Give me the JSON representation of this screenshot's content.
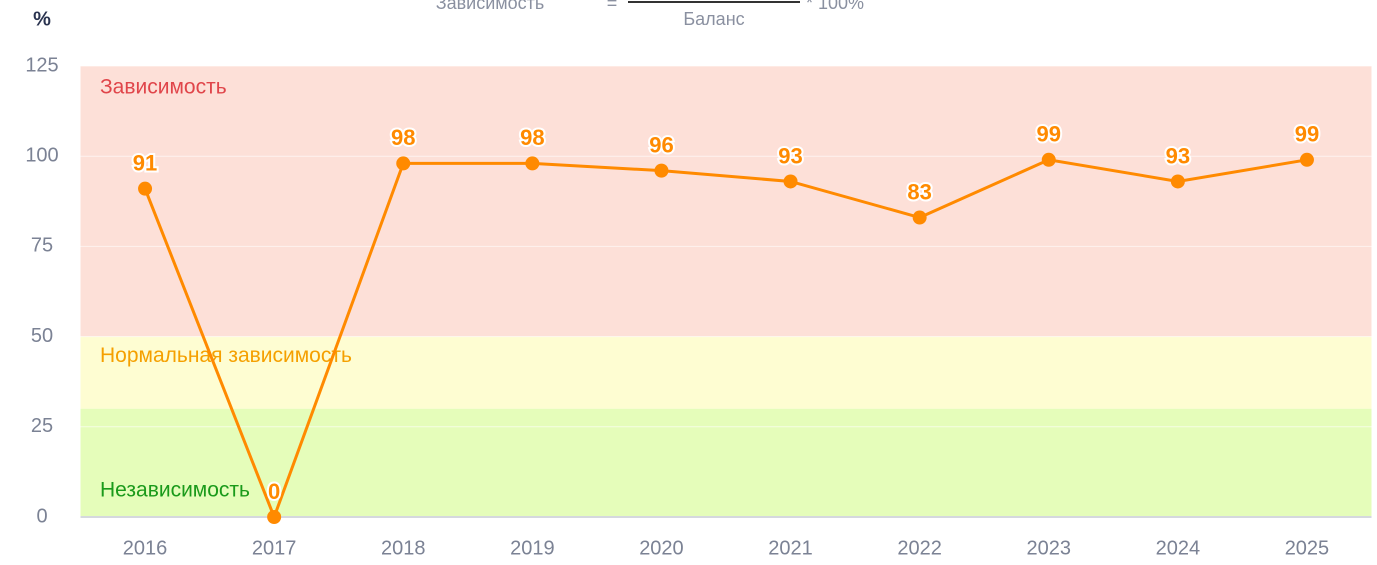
{
  "formula": {
    "lhs": "Зависимость",
    "eq": "=",
    "denominator": "Баланс",
    "rhs": "* 100%"
  },
  "chart_data": {
    "type": "line",
    "y_unit": "%",
    "categories": [
      "2016",
      "2017",
      "2018",
      "2019",
      "2020",
      "2021",
      "2022",
      "2023",
      "2024",
      "2025"
    ],
    "series": [
      {
        "color": "#ff8a00",
        "values": [
          91,
          0,
          98,
          98,
          96,
          93,
          83,
          99,
          93,
          99
        ]
      }
    ],
    "ylim": [
      0,
      125
    ],
    "yticks": [
      0,
      25,
      50,
      75,
      100,
      125
    ],
    "grid": true,
    "bands": [
      {
        "label": "Зависимость",
        "from": 50,
        "to": 125,
        "color": "#fde0d8",
        "text_color": "#e0454a"
      },
      {
        "label": "Нормальная зависимость",
        "from": 30,
        "to": 50,
        "color": "#fefdd2",
        "text_color": "#f5a000"
      },
      {
        "label": "Независимость",
        "from": 0,
        "to": 30,
        "color": "#e5fdba",
        "text_color": "#1a9a1a"
      }
    ]
  }
}
